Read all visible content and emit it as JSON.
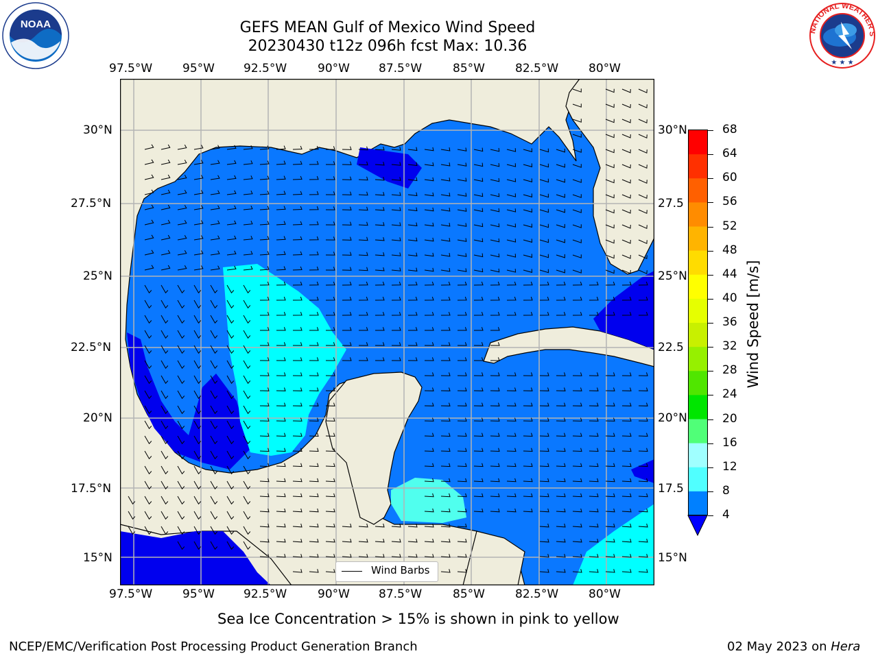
{
  "title_line1": "GEFS MEAN Gulf of Mexico Wind Speed",
  "title_line2": "20230430 t12z 096h fcst   Max: 10.36",
  "lon_ticks": [
    "97.5°W",
    "95°W",
    "92.5°W",
    "90°W",
    "87.5°W",
    "85°W",
    "82.5°W",
    "80°W"
  ],
  "lat_ticks_left": [
    "30°N",
    "27.5°N",
    "25°N",
    "22.5°N",
    "20°N",
    "17.5°N",
    "15°N"
  ],
  "lat_ticks_right": [
    "30°N",
    "27.5",
    "25°N",
    "22.5",
    "20°N",
    "17.5",
    "15°N"
  ],
  "legend_label": "Wind Barbs",
  "colorbar": {
    "label": "Wind Speed [m/s]",
    "ticks": [
      "68",
      "64",
      "60",
      "56",
      "52",
      "48",
      "44",
      "40",
      "36",
      "32",
      "28",
      "24",
      "20",
      "16",
      "12",
      "8",
      "4"
    ],
    "colors": [
      "#ff0000",
      "#ff2000",
      "#ff5000",
      "#ff8000",
      "#ffa000",
      "#ffc800",
      "#fff000",
      "#f0ff00",
      "#e6f500",
      "#c8f000",
      "#96f000",
      "#50e600",
      "#00e600",
      "#50ff78",
      "#a0ffff",
      "#50ffff",
      "#00ffff",
      "#0080ff"
    ],
    "extend_color": "#0000ff"
  },
  "caption": "Sea Ice Concentration > 15% is shown in pink to yellow",
  "footer_left": "NCEP/EMC/Verification Post Processing Product Generation Branch",
  "footer_right_date": "02 May 2023 on ",
  "footer_right_host": "Hera",
  "logos": {
    "noaa": "NOAA",
    "nws": "NATIONAL WEATHER SERVICE"
  },
  "colors": {
    "land": "#efeddc",
    "ocean_4_8": "#0a78ff",
    "ocean_lt4": "#0000ee",
    "ocean_8_12": "#00ffff",
    "ocean_12_16": "#50ffee",
    "grid": "#b4b4b4"
  }
}
